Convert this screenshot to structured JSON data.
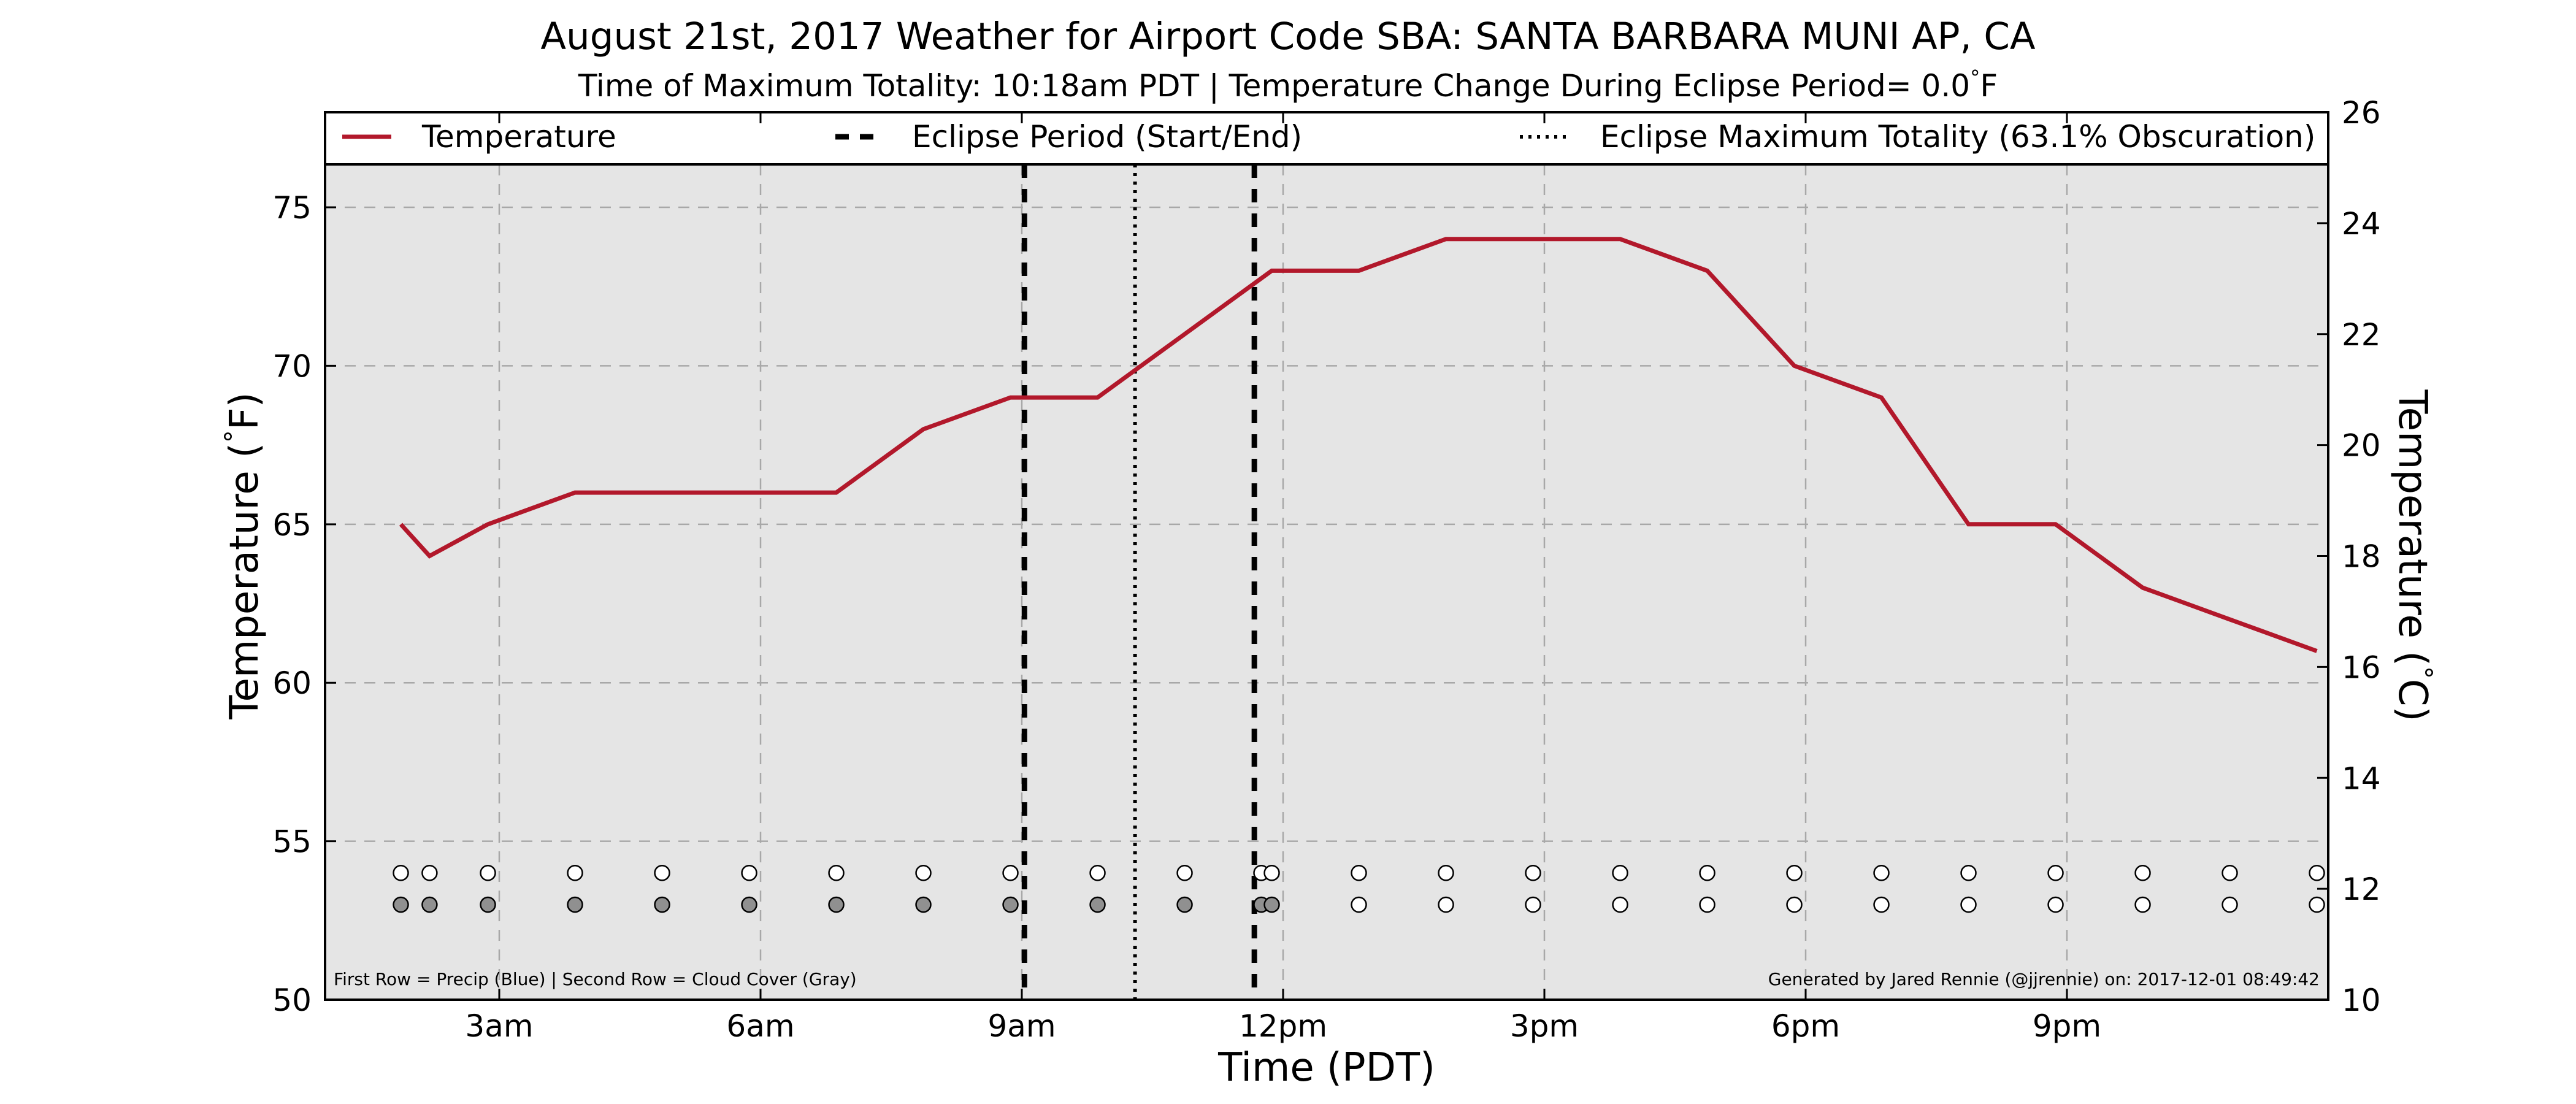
{
  "chart_data": {
    "type": "line",
    "title": "August 21st, 2017 Weather for Airport Code SBA: SANTA BARBARA MUNI AP, CA",
    "subtitle": "Time of Maximum Totality: 10:18am PDT | Temperature Change During Eclipse Period= 0.0$^\\circ$F",
    "xlabel": "Time (PDT)",
    "ylabel": "Temperature ($^\\circ$F)",
    "ylabel_right": "Temperature ($^\\circ$C)",
    "x_unit": "hours after midnight",
    "xlim": [
      1,
      24
    ],
    "ylim": [
      50,
      78
    ],
    "ylim_right": [
      10,
      26
    ],
    "x_ticks": [
      {
        "value": 3,
        "label": "3am"
      },
      {
        "value": 6,
        "label": "6am"
      },
      {
        "value": 9,
        "label": "9am"
      },
      {
        "value": 12,
        "label": "12pm"
      },
      {
        "value": 15,
        "label": "3pm"
      },
      {
        "value": 18,
        "label": "6pm"
      },
      {
        "value": 21,
        "label": "9pm"
      }
    ],
    "y_ticks": [
      50,
      55,
      60,
      65,
      70,
      75
    ],
    "y_ticks_right": [
      10,
      12,
      14,
      16,
      18,
      20,
      22,
      24,
      26
    ],
    "grid": true,
    "series": [
      {
        "name": "Temperature",
        "color": "#b2182b",
        "x": [
          1.87,
          2.2,
          2.87,
          3.87,
          4.87,
          5.87,
          6.87,
          7.87,
          8.87,
          9.87,
          10.87,
          11.87,
          12.87,
          13.87,
          14.87,
          15.87,
          16.87,
          17.87,
          18.87,
          19.87,
          20.87,
          21.87,
          22.87,
          23.87
        ],
        "y": [
          65,
          64,
          65,
          66,
          66,
          66,
          66,
          68,
          69,
          69,
          71,
          73,
          73,
          74,
          74,
          74,
          73,
          70,
          69,
          65,
          65,
          63,
          62,
          61
        ]
      }
    ],
    "eclipse": {
      "start_end_label": "Eclipse Period (Start/End)",
      "start": 9.03,
      "end": 11.67,
      "max_label": "Eclipse Maximum Totality (63.1% Obscuration)",
      "max": 10.3
    },
    "markers": {
      "precip_y": 54,
      "cloud_y": 53,
      "precip_x": [
        1.87,
        2.2,
        2.87,
        3.87,
        4.87,
        5.87,
        6.87,
        7.87,
        8.87,
        9.87,
        10.87,
        11.75,
        11.87,
        12.87,
        13.87,
        14.87,
        15.87,
        16.87,
        17.87,
        18.87,
        19.87,
        20.87,
        21.87,
        22.87,
        23.87
      ],
      "cloud_x": [
        1.87,
        2.2,
        2.87,
        3.87,
        4.87,
        5.87,
        6.87,
        7.87,
        8.87,
        9.87,
        10.87,
        11.75,
        11.87,
        12.87,
        13.87,
        14.87,
        15.87,
        16.87,
        17.87,
        18.87,
        19.87,
        20.87,
        21.87,
        22.87,
        23.87
      ],
      "cloud_filled": [
        true,
        true,
        true,
        true,
        true,
        true,
        true,
        true,
        true,
        true,
        true,
        true,
        true,
        false,
        false,
        false,
        false,
        false,
        false,
        false,
        false,
        false,
        false,
        false,
        false
      ],
      "cloud_fill_color": "#909090",
      "precip_fill_color": "#ffffff"
    },
    "legend": {
      "placement": "top",
      "temperature_label": "Temperature",
      "eclipse_period_label": "Eclipse Period (Start/End)",
      "eclipse_max_label": "Eclipse Maximum Totality (63.1% Obscuration)"
    },
    "footnote_left": "First Row = Precip (Blue) | Second Row = Cloud Cover (Gray)",
    "footnote_right": "Generated by Jared Rennie (@jjrennie) on: 2017-12-01 08:49:42",
    "colors": {
      "plot_background": "#e5e5e5",
      "grid": "#a8a8a8",
      "line": "#b2182b"
    }
  }
}
